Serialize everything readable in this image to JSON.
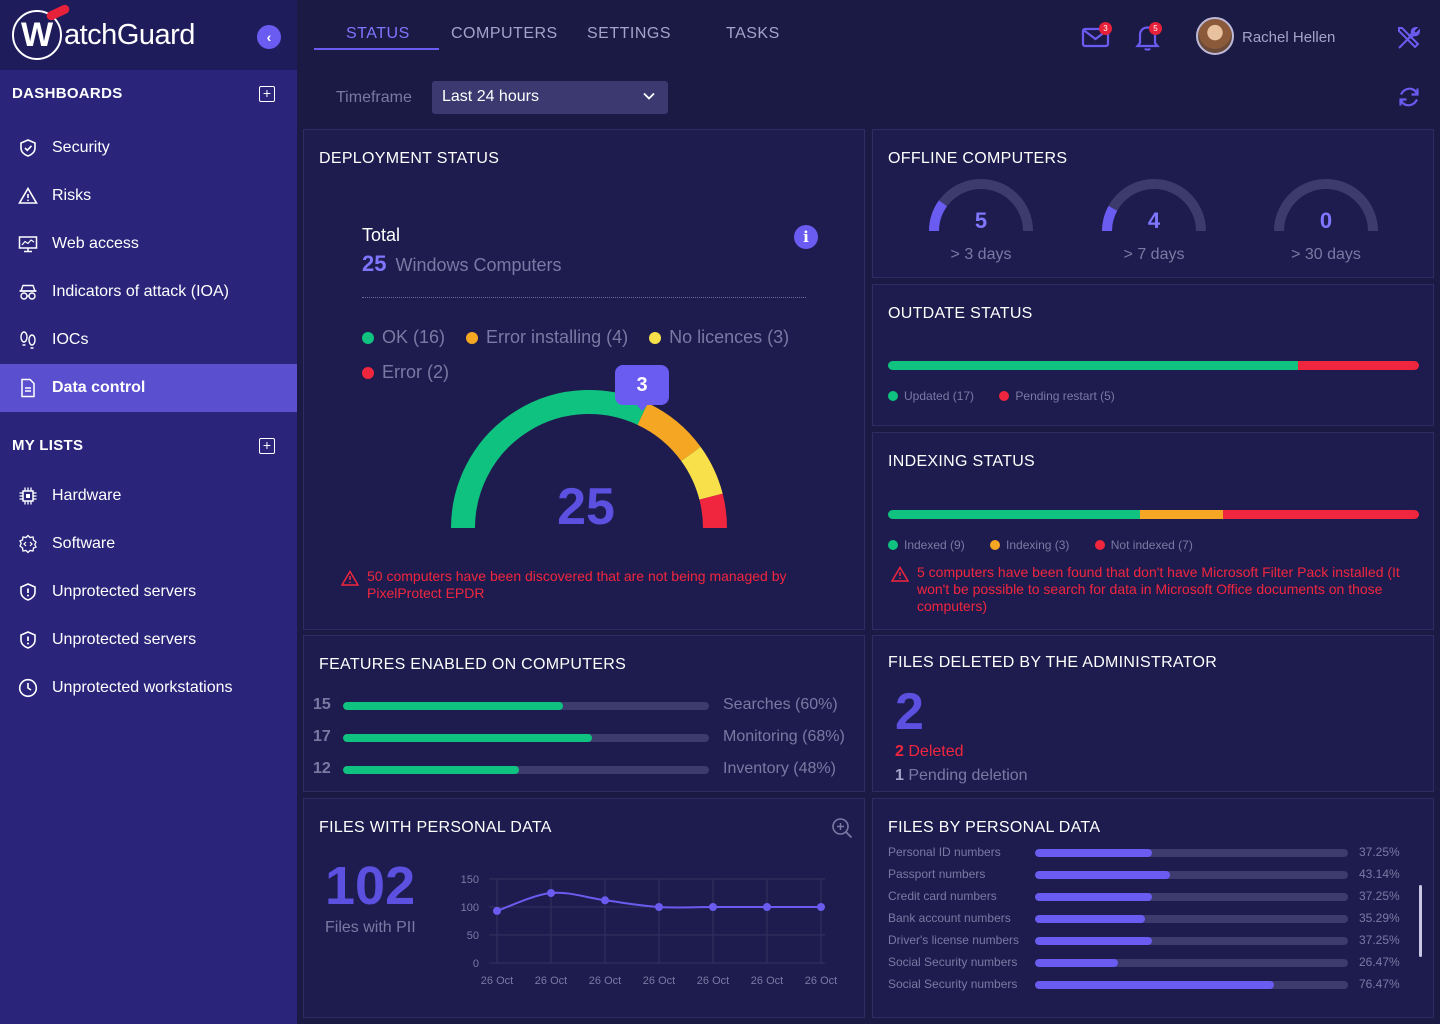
{
  "brand": {
    "logo_letter": "W",
    "logo_text": "atchGuard"
  },
  "sidebar": {
    "dashboards_heading": "DASHBOARDS",
    "dashboard_items": [
      {
        "label": "Security",
        "icon": "shield-check-icon"
      },
      {
        "label": "Risks",
        "icon": "warning-triangle-icon"
      },
      {
        "label": "Web access",
        "icon": "monitor-icon"
      },
      {
        "label": "Indicators of attack (IOA)",
        "icon": "spy-glasses-icon"
      },
      {
        "label": "IOCs",
        "icon": "footprints-icon"
      },
      {
        "label": "Data control",
        "icon": "document-icon",
        "active": true
      }
    ],
    "lists_heading": "MY LISTS",
    "list_items": [
      {
        "label": "Hardware",
        "icon": "chip-icon"
      },
      {
        "label": "Software",
        "icon": "code-gear-icon"
      },
      {
        "label": "Unprotected servers",
        "icon": "shield-alert-icon"
      },
      {
        "label": "Unprotected servers",
        "icon": "shield-alert-icon"
      },
      {
        "label": "Unprotected workstations",
        "icon": "clock-icon"
      }
    ]
  },
  "tabs": [
    "STATUS",
    "COMPUTERS",
    "SETTINGS",
    "TASKS"
  ],
  "header": {
    "mail_count": "3",
    "notif_count": "5",
    "user_name": "Rachel Hellen"
  },
  "timeframe": {
    "label": "Timeframe",
    "value": "Last 24 hours"
  },
  "deployment": {
    "title": "DEPLOYMENT STATUS",
    "total_label": "Total",
    "total_value": "25",
    "total_unit": "Windows Computers",
    "legend": [
      {
        "label": "OK (16)",
        "color": "#0fc27f",
        "value": 16
      },
      {
        "label": "Error installing (4)",
        "color": "#f5a623",
        "value": 4
      },
      {
        "label": "No licences (3)",
        "color": "#f8e04a",
        "value": 3
      },
      {
        "label": "Error (2)",
        "color": "#f0263e",
        "value": 2
      }
    ],
    "gauge_value": "25",
    "tooltip_value": "3",
    "warning": "50 computers have been discovered that are not being managed by PixelProtect EPDR"
  },
  "offline": {
    "title": "OFFLINE COMPUTERS",
    "items": [
      {
        "value": "5",
        "label": "> 3 days",
        "fraction": 0.2
      },
      {
        "value": "4",
        "label": "> 7 days",
        "fraction": 0.16
      },
      {
        "value": "0",
        "label": "> 30 days",
        "fraction": 0
      }
    ]
  },
  "outdate": {
    "title": "OUTDATE STATUS",
    "segments": [
      {
        "label": "Updated (17)",
        "value": 17,
        "color": "#0fc27f"
      },
      {
        "label": "Pending restart (5)",
        "value": 5,
        "color": "#f0263e"
      }
    ]
  },
  "indexing": {
    "title": "INDEXING STATUS",
    "segments": [
      {
        "label": "Indexed (9)",
        "value": 9,
        "color": "#0fc27f"
      },
      {
        "label": "Indexing (3)",
        "value": 3,
        "color": "#f5a623"
      },
      {
        "label": "Not indexed (7)",
        "value": 7,
        "color": "#f0263e"
      }
    ],
    "warning": "5 computers have been found that don't have Microsoft Filter Pack installed (It won't be possible to search for data in Microsoft Office documents on those computers)"
  },
  "features": {
    "title": "FEATURES ENABLED ON COMPUTERS",
    "rows": [
      {
        "count": "15",
        "label": "Searches (60%)",
        "percent": 60
      },
      {
        "count": "17",
        "label": "Monitoring (68%)",
        "percent": 68
      },
      {
        "count": "12",
        "label": "Inventory (48%)",
        "percent": 48
      }
    ]
  },
  "deleted": {
    "title": "FILES DELETED BY THE ADMINISTRATOR",
    "big_value": "2",
    "deleted_count": "2",
    "deleted_label": "Deleted",
    "pending_count": "1",
    "pending_label": "Pending deletion"
  },
  "personal": {
    "title": "FILES WITH PERSONAL DATA",
    "big_value": "102",
    "big_label": "Files with PII"
  },
  "chart_data": {
    "type": "line",
    "x": [
      "26 Oct",
      "26 Oct",
      "26 Oct",
      "26 Oct",
      "26 Oct",
      "26 Oct",
      "26 Oct"
    ],
    "values": [
      93,
      125,
      112,
      100,
      100,
      100,
      100
    ],
    "yticks": [
      "150",
      "100",
      "50",
      "0"
    ],
    "ylim": [
      0,
      150
    ],
    "color": "#6a5cf0"
  },
  "by_personal": {
    "title": "FILES BY PERSONAL DATA",
    "rows": [
      {
        "label": "Personal ID numbers",
        "pct": "37.25%",
        "value": 37.25
      },
      {
        "label": "Passport numbers",
        "pct": "43.14%",
        "value": 43.14
      },
      {
        "label": "Credit card numbers",
        "pct": "37.25%",
        "value": 37.25
      },
      {
        "label": "Bank account numbers",
        "pct": "35.29%",
        "value": 35.29
      },
      {
        "label": "Driver's license numbers",
        "pct": "37.25%",
        "value": 37.25
      },
      {
        "label": "Social Security numbers",
        "pct": "26.47%",
        "value": 26.47
      },
      {
        "label": "Social Security numbers",
        "pct": "76.47%",
        "value": 76.47
      }
    ]
  }
}
